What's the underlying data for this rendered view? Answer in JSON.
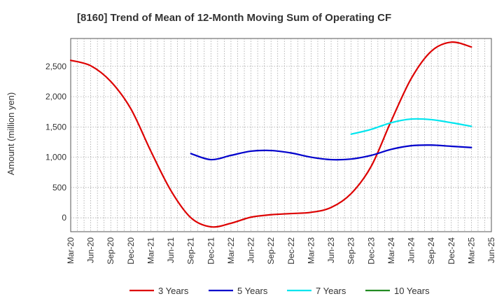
{
  "chart_data": {
    "type": "line",
    "title": "[8160]  Trend of Mean of 12-Month Moving Sum of Operating CF",
    "xlabel": "",
    "ylabel": "Amount (million yen)",
    "ylim": [
      -230,
      2960
    ],
    "yticks": [
      0,
      500,
      1000,
      1500,
      2000,
      2500
    ],
    "ytick_labels": [
      "0",
      "500",
      "1,000",
      "1,500",
      "2,000",
      "2,500"
    ],
    "x_start": "2020-03",
    "x_end": "2025-06",
    "xtick_labels": [
      "Mar-20",
      "Jun-20",
      "Sep-20",
      "Dec-20",
      "Mar-21",
      "Jun-21",
      "Sep-21",
      "Dec-21",
      "Mar-22",
      "Jun-22",
      "Sep-22",
      "Dec-22",
      "Mar-23",
      "Jun-23",
      "Sep-23",
      "Dec-23",
      "Mar-24",
      "Jun-24",
      "Sep-24",
      "Dec-24",
      "Mar-25",
      "Jun-25"
    ],
    "grid": true,
    "legend_position": "bottom",
    "series": [
      {
        "name": "3 Years",
        "color": "#dd0000",
        "points": [
          [
            "2020-03",
            2600
          ],
          [
            "2020-06",
            2510
          ],
          [
            "2020-09",
            2250
          ],
          [
            "2020-12",
            1800
          ],
          [
            "2021-03",
            1100
          ],
          [
            "2021-06",
            450
          ],
          [
            "2021-09",
            0
          ],
          [
            "2021-12",
            -150
          ],
          [
            "2022-03",
            -90
          ],
          [
            "2022-06",
            10
          ],
          [
            "2022-09",
            50
          ],
          [
            "2022-12",
            70
          ],
          [
            "2023-03",
            90
          ],
          [
            "2023-06",
            170
          ],
          [
            "2023-09",
            400
          ],
          [
            "2023-12",
            850
          ],
          [
            "2024-03",
            1600
          ],
          [
            "2024-06",
            2300
          ],
          [
            "2024-09",
            2750
          ],
          [
            "2024-12",
            2900
          ],
          [
            "2025-03",
            2820
          ]
        ]
      },
      {
        "name": "5 Years",
        "color": "#0000cc",
        "points": [
          [
            "2021-09",
            1060
          ],
          [
            "2021-12",
            960
          ],
          [
            "2022-03",
            1030
          ],
          [
            "2022-06",
            1100
          ],
          [
            "2022-09",
            1110
          ],
          [
            "2022-12",
            1070
          ],
          [
            "2023-03",
            1000
          ],
          [
            "2023-06",
            960
          ],
          [
            "2023-09",
            970
          ],
          [
            "2023-12",
            1030
          ],
          [
            "2024-03",
            1130
          ],
          [
            "2024-06",
            1190
          ],
          [
            "2024-09",
            1200
          ],
          [
            "2024-12",
            1180
          ],
          [
            "2025-03",
            1160
          ]
        ]
      },
      {
        "name": "7 Years",
        "color": "#00e5ee",
        "points": [
          [
            "2023-09",
            1380
          ],
          [
            "2023-12",
            1460
          ],
          [
            "2024-03",
            1570
          ],
          [
            "2024-06",
            1630
          ],
          [
            "2024-09",
            1620
          ],
          [
            "2024-12",
            1570
          ],
          [
            "2025-03",
            1510
          ]
        ]
      },
      {
        "name": "10 Years",
        "color": "#228b22",
        "points": []
      }
    ]
  }
}
